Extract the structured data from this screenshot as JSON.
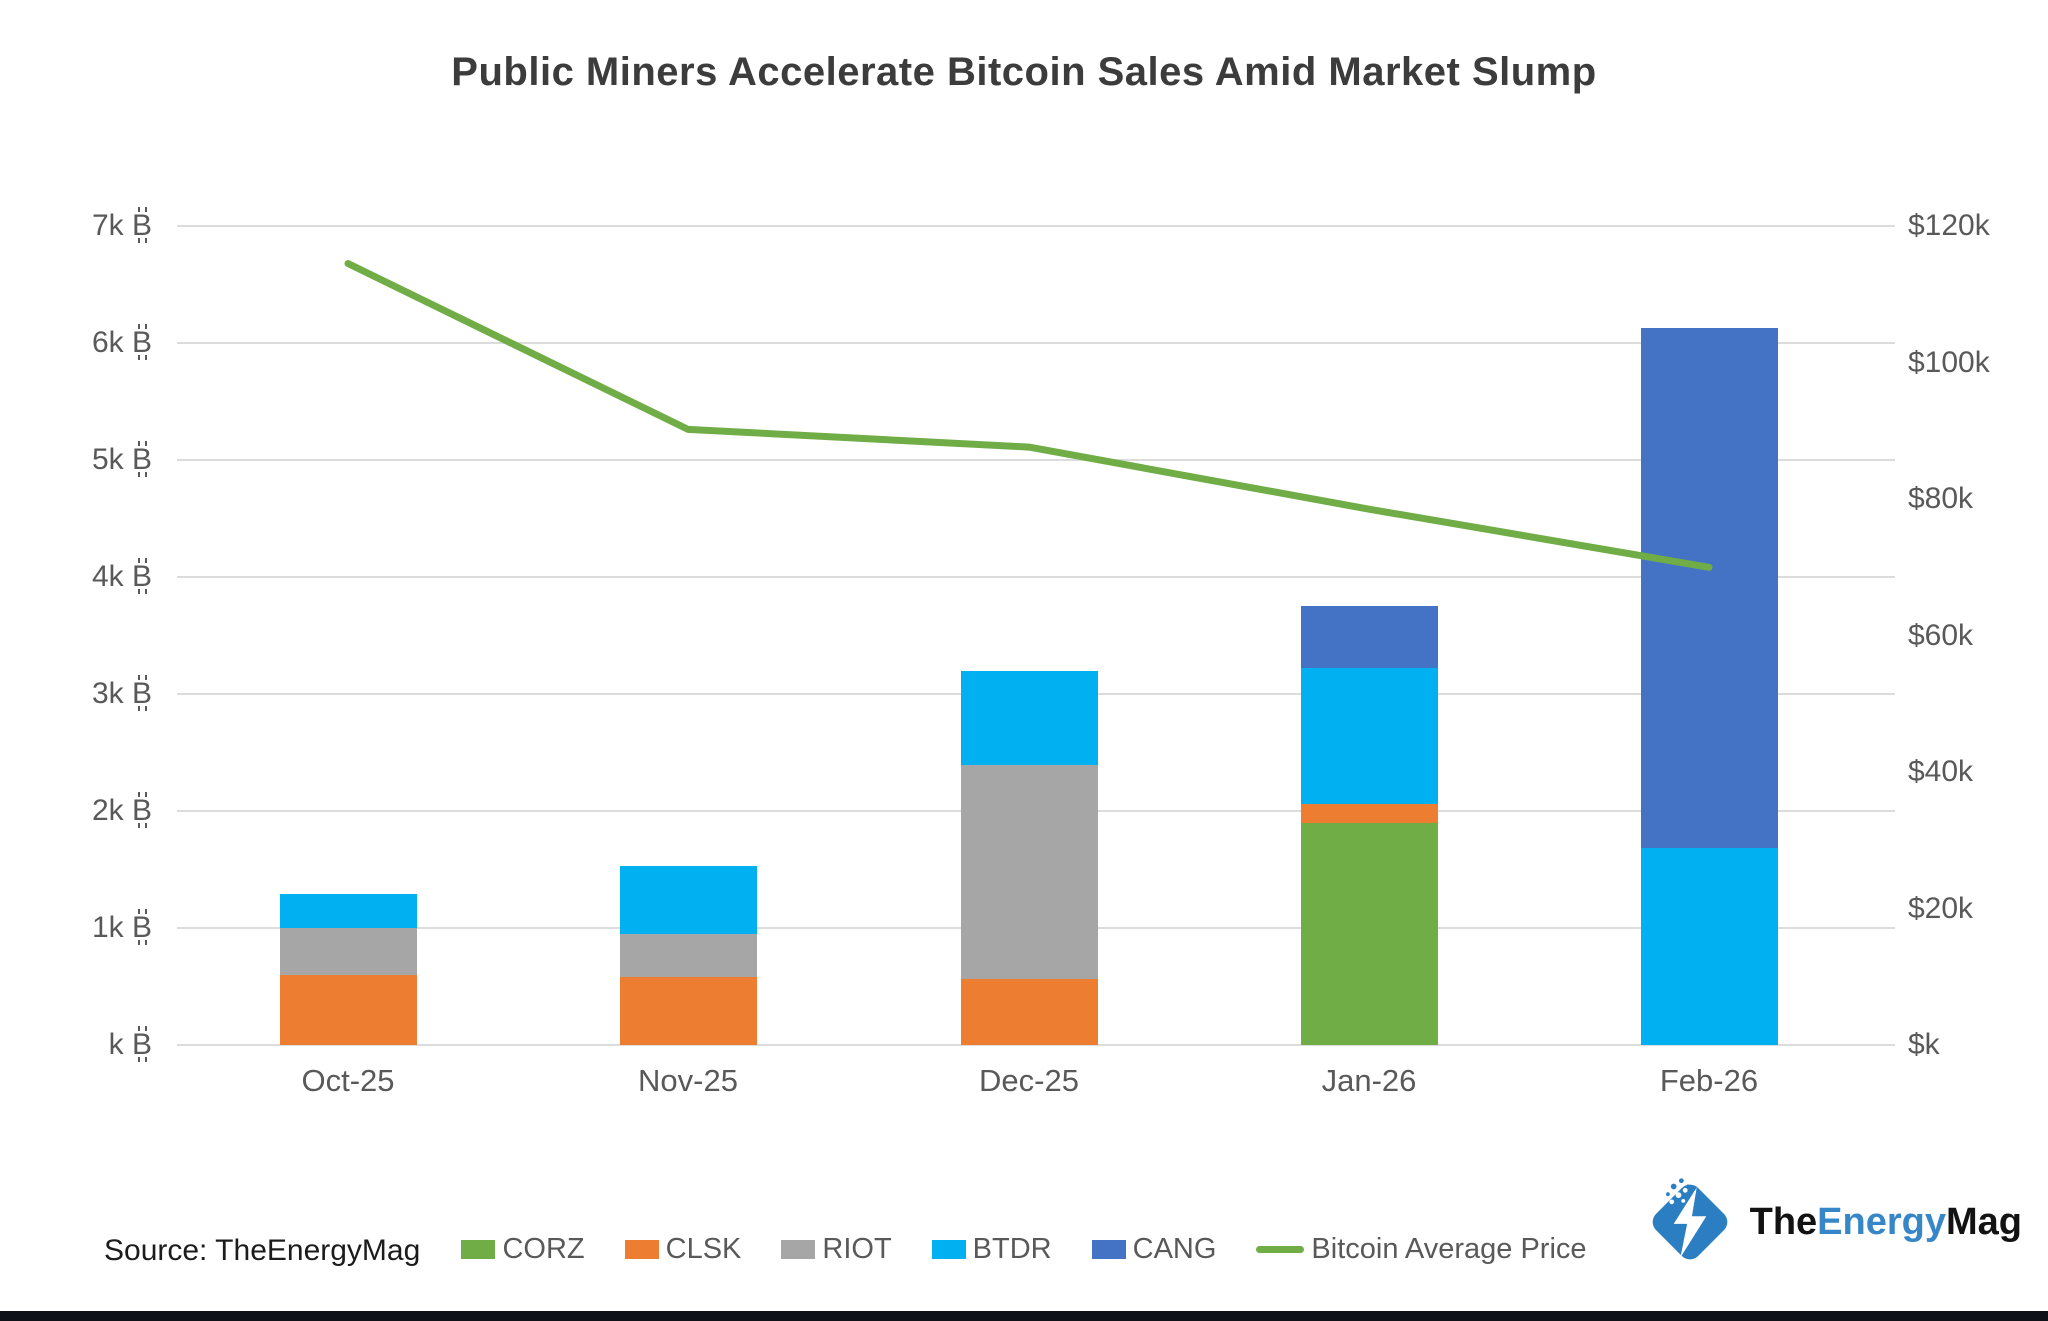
{
  "source": {
    "label": "Source: TheEnergyMag"
  },
  "logo": {
    "the": "The",
    "energy": "Energy",
    "mag": "Mag"
  },
  "colors": {
    "title_text": "#3c3c3c",
    "axis_text": "#595959",
    "gridline": "#dcdcdc",
    "bottom_strip": "#0e1118",
    "logo_blue": "#2b7ec2"
  },
  "chart_data": {
    "type": "bar",
    "subtype": "stacked-bars-with-line",
    "title": "Public Miners Accelerate Bitcoin Sales Amid Market Slump",
    "categories": [
      "Oct-25",
      "Nov-25",
      "Dec-25",
      "Jan-26",
      "Feb-26"
    ],
    "series": [
      {
        "name": "CORZ",
        "color": "#70AD47",
        "values": [
          0,
          0,
          0,
          1900,
          0
        ]
      },
      {
        "name": "CLSK",
        "color": "#ED7D31",
        "values": [
          600,
          580,
          560,
          160,
          0
        ]
      },
      {
        "name": "RIOT",
        "color": "#A6A6A6",
        "values": [
          400,
          370,
          1830,
          0,
          0
        ]
      },
      {
        "name": "BTDR",
        "color": "#00B0F0",
        "values": [
          290,
          580,
          810,
          1160,
          1680
        ]
      },
      {
        "name": "CANG",
        "color": "#4472C4",
        "values": [
          0,
          0,
          0,
          530,
          4450
        ]
      }
    ],
    "line_series": {
      "name": "Bitcoin Average Price",
      "color": "#70AD47",
      "axis": "right",
      "values": [
        114500,
        90200,
        87600,
        78500,
        70000
      ]
    },
    "left_axis": {
      "unit": "₿",
      "min": 0,
      "max": 7000,
      "step": 1000,
      "ticks": [
        "7k ₿",
        "6k ₿",
        "5k ₿",
        "4k ₿",
        "3k ₿",
        "2k ₿",
        "1k ₿",
        "k ₿"
      ]
    },
    "right_axis": {
      "unit": "$",
      "min": 0,
      "max": 120000,
      "step": 20000,
      "ticks": [
        "$120k",
        "$100k",
        "$80k",
        "$60k",
        "$40k",
        "$20k",
        "$k"
      ]
    },
    "grid": true,
    "legend_position": "bottom"
  }
}
